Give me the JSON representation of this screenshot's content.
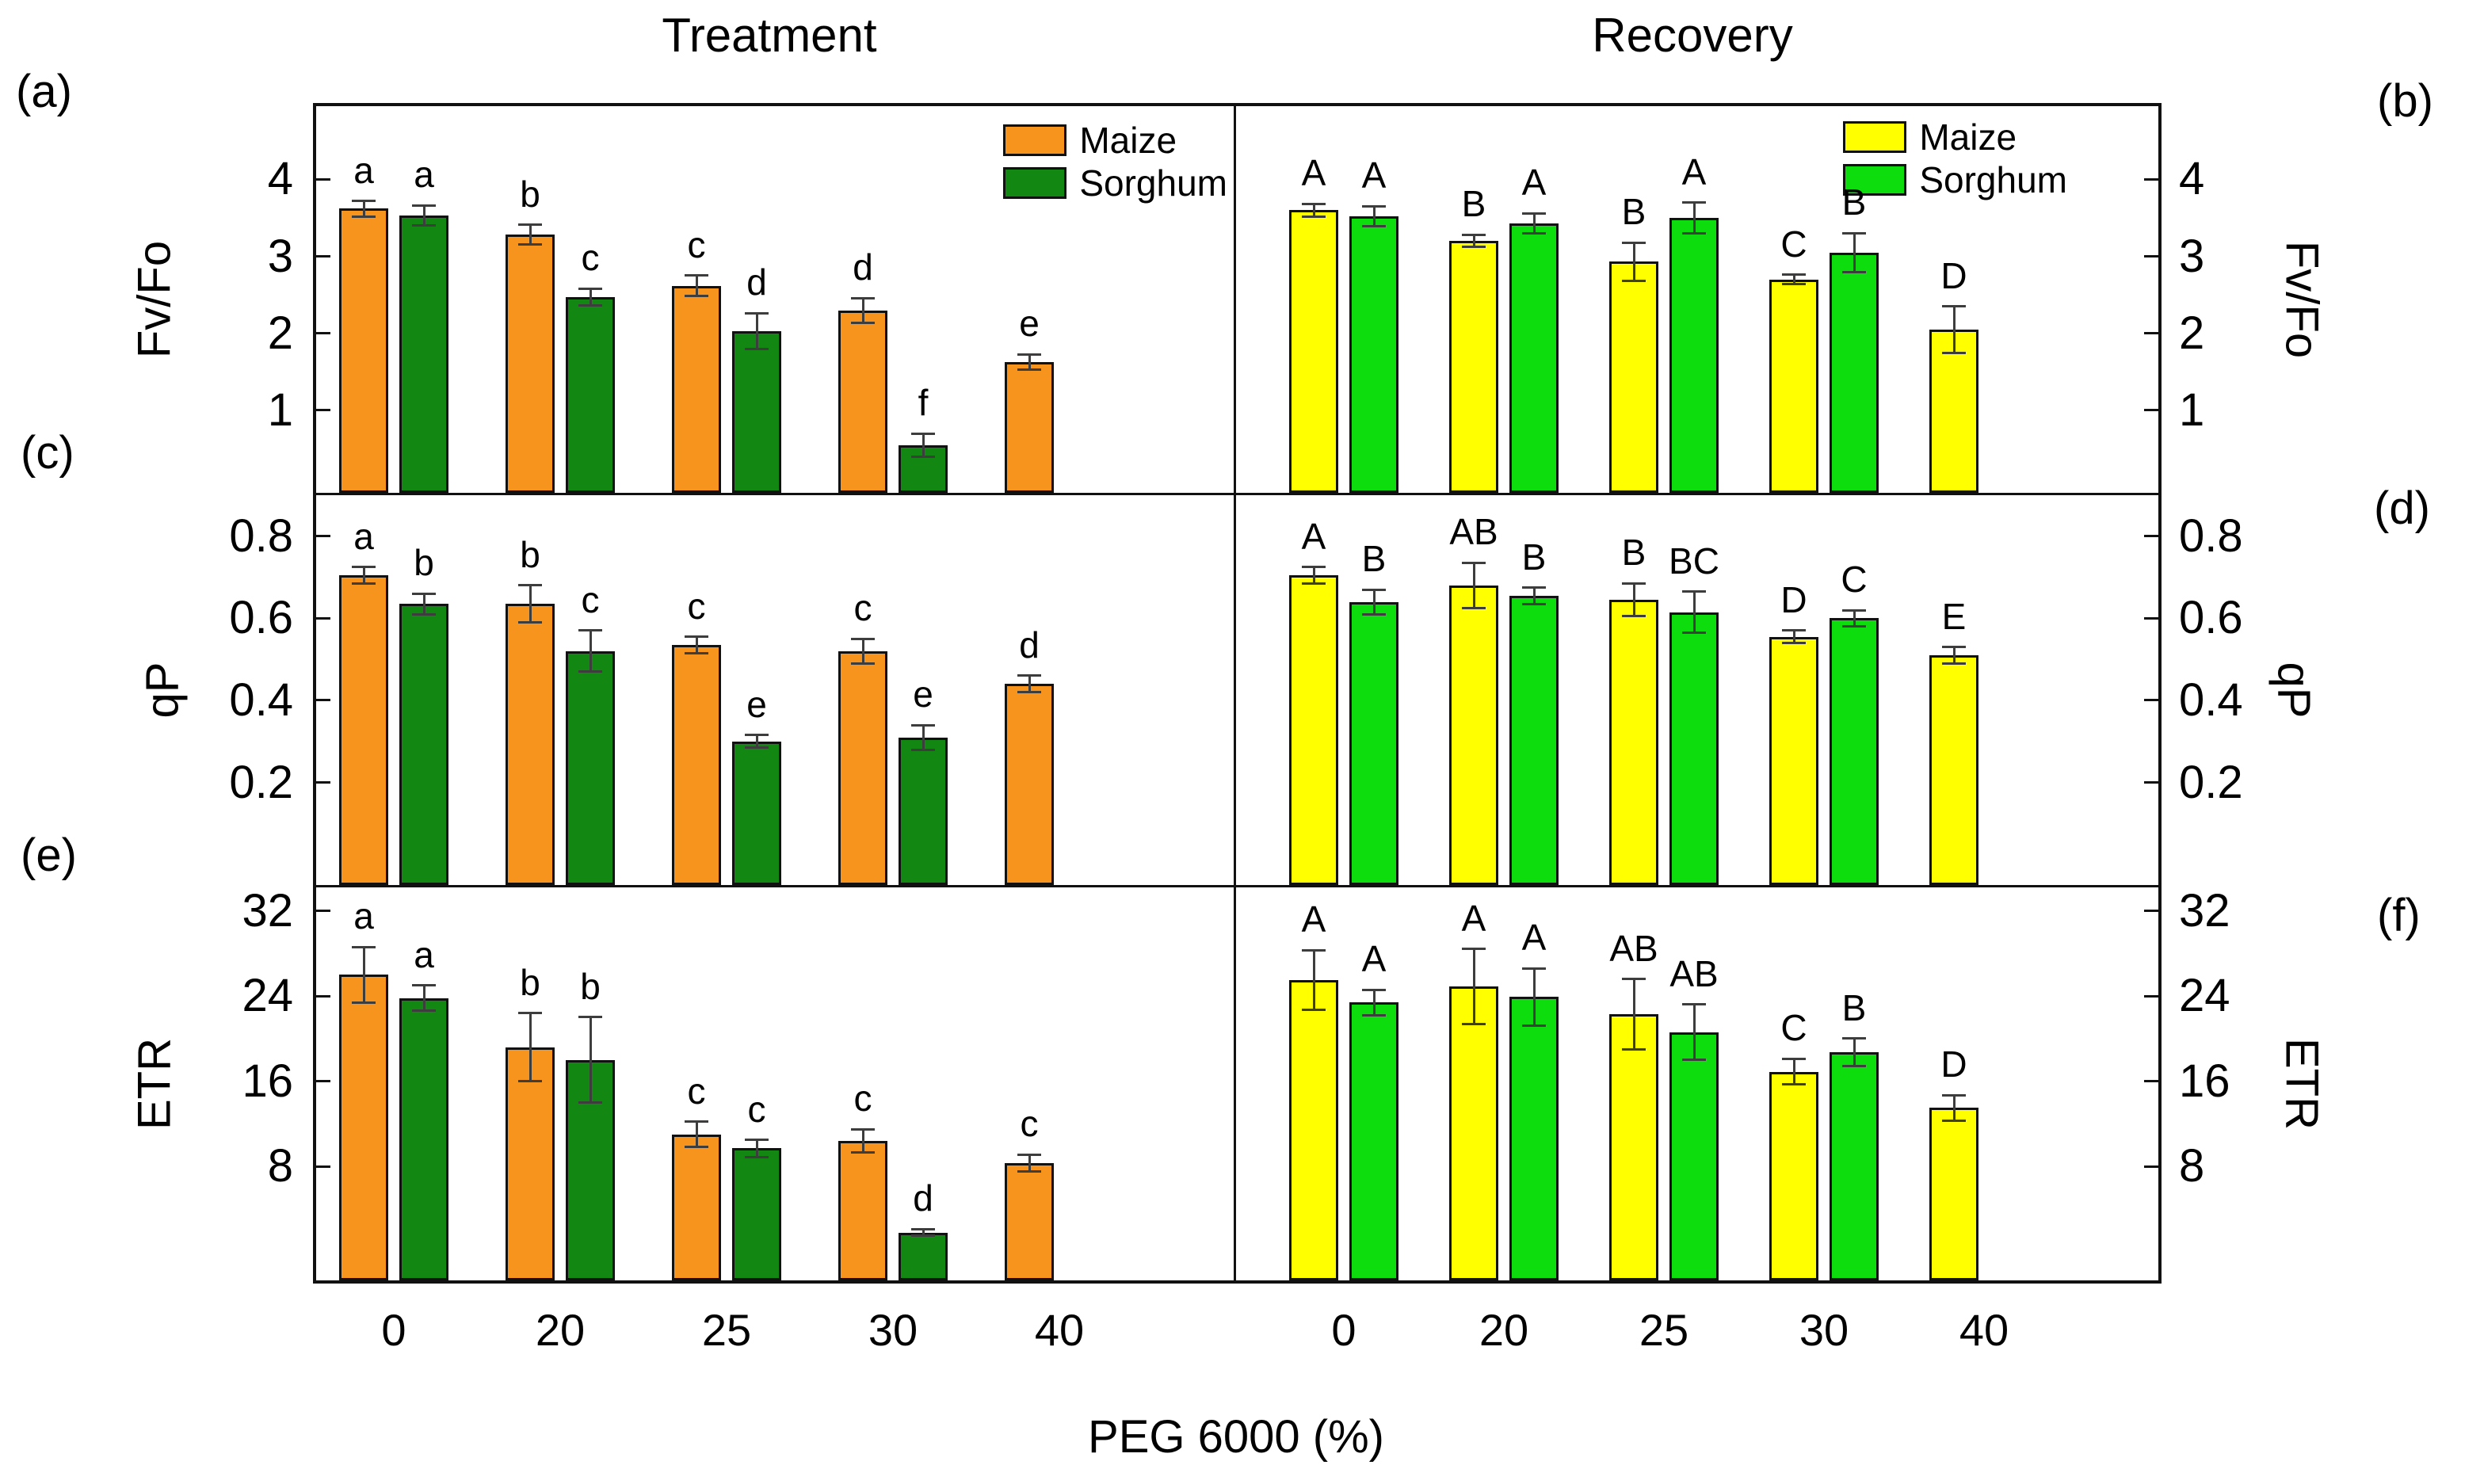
{
  "figure": {
    "title_left": "Treatment",
    "title_right": "Recovery",
    "x_axis_label": "PEG 6000 (%)",
    "x_categories": [
      "0",
      "20",
      "25",
      "30",
      "40"
    ]
  },
  "panel_letters": {
    "a": "(a)",
    "b": "(b)",
    "c": "(c)",
    "d": "(d)",
    "e": "(e)",
    "f": "(f)"
  },
  "legends": {
    "treatment": {
      "maize_label": "Maize",
      "sorghum_label": "Sorghum",
      "maize_color": "#F7941E",
      "sorghum_color": "#128712"
    },
    "recovery": {
      "maize_label": "Maize",
      "sorghum_label": "Sorghum",
      "maize_color": "#FFFF00",
      "sorghum_color": "#0DDD0D"
    }
  },
  "colors": {
    "axis": "#111111",
    "error_bar": "#3d3d3d",
    "background": "#ffffff"
  },
  "chart_data": [
    {
      "id": "a",
      "section": "Treatment",
      "type": "bar",
      "ylabel": "Fv/Fo",
      "yticks": [
        "1",
        "2",
        "3",
        "4"
      ],
      "ylim": [
        -0.07,
        4.95
      ],
      "grid": false,
      "categories": [
        "0",
        "20",
        "25",
        "30",
        "40"
      ],
      "series": [
        {
          "name": "Maize",
          "color": "#F7941E",
          "values": [
            3.62,
            3.28,
            2.62,
            2.3,
            1.63
          ],
          "errors": [
            0.1,
            0.13,
            0.13,
            0.16,
            0.1
          ],
          "sig_letters": [
            "a",
            "b",
            "c",
            "d",
            "e"
          ]
        },
        {
          "name": "Sorghum",
          "color": "#128712",
          "values": [
            3.53,
            2.47,
            2.03,
            0.55,
            null
          ],
          "errors": [
            0.13,
            0.11,
            0.23,
            0.15,
            null
          ],
          "sig_letters": [
            "a",
            "c",
            "d",
            "f",
            null
          ]
        }
      ]
    },
    {
      "id": "b",
      "section": "Recovery",
      "type": "bar",
      "ylabel": "Fv/Fo",
      "yticks": [
        "1",
        "2",
        "3",
        "4"
      ],
      "ylim": [
        -0.07,
        4.95
      ],
      "grid": false,
      "categories": [
        "0",
        "20",
        "25",
        "30",
        "40"
      ],
      "series": [
        {
          "name": "Maize",
          "color": "#FFFF00",
          "values": [
            3.6,
            3.2,
            2.93,
            2.7,
            2.05
          ],
          "errors": [
            0.08,
            0.08,
            0.25,
            0.06,
            0.3
          ],
          "sig_letters": [
            "A",
            "B",
            "B",
            "C",
            "D"
          ]
        },
        {
          "name": "Sorghum",
          "color": "#0DDD0D",
          "values": [
            3.52,
            3.43,
            3.5,
            3.05,
            null
          ],
          "errors": [
            0.13,
            0.13,
            0.2,
            0.25,
            null
          ],
          "sig_letters": [
            "A",
            "A",
            "A",
            "B",
            null
          ]
        }
      ]
    },
    {
      "id": "c",
      "section": "Treatment",
      "type": "bar",
      "ylabel": "qP",
      "yticks": [
        "0.2",
        "0.4",
        "0.6",
        "0.8"
      ],
      "ylim": [
        -0.05,
        0.9
      ],
      "grid": false,
      "categories": [
        "0",
        "20",
        "25",
        "30",
        "40"
      ],
      "series": [
        {
          "name": "Maize",
          "color": "#F7941E",
          "values": [
            0.705,
            0.635,
            0.535,
            0.52,
            0.44
          ],
          "errors": [
            0.02,
            0.045,
            0.02,
            0.03,
            0.02
          ],
          "sig_letters": [
            "a",
            "b",
            "c",
            "c",
            "d"
          ]
        },
        {
          "name": "Sorghum",
          "color": "#128712",
          "values": [
            0.635,
            0.52,
            0.3,
            0.31,
            null
          ],
          "errors": [
            0.025,
            0.05,
            0.015,
            0.03,
            null
          ],
          "sig_letters": [
            "b",
            "c",
            "e",
            "e",
            null
          ]
        }
      ]
    },
    {
      "id": "d",
      "section": "Recovery",
      "type": "bar",
      "ylabel": "qP",
      "yticks": [
        "0.2",
        "0.4",
        "0.6",
        "0.8"
      ],
      "ylim": [
        -0.05,
        0.9
      ],
      "grid": false,
      "categories": [
        "0",
        "20",
        "25",
        "30",
        "40"
      ],
      "series": [
        {
          "name": "Maize",
          "color": "#FFFF00",
          "values": [
            0.705,
            0.68,
            0.645,
            0.555,
            0.51
          ],
          "errors": [
            0.02,
            0.055,
            0.04,
            0.015,
            0.02
          ],
          "sig_letters": [
            "A",
            "AB",
            "B",
            "D",
            "E"
          ]
        },
        {
          "name": "Sorghum",
          "color": "#0DDD0D",
          "values": [
            0.64,
            0.655,
            0.615,
            0.6,
            null
          ],
          "errors": [
            0.03,
            0.02,
            0.05,
            0.02,
            null
          ],
          "sig_letters": [
            "B",
            "B",
            "BC",
            "C",
            null
          ]
        }
      ]
    },
    {
      "id": "e",
      "section": "Treatment",
      "type": "bar",
      "ylabel": "ETR",
      "yticks": [
        "8",
        "16",
        "24",
        "32"
      ],
      "ylim": [
        -2.7,
        34.2
      ],
      "grid": false,
      "categories": [
        "0",
        "20",
        "25",
        "30",
        "40"
      ],
      "series": [
        {
          "name": "Maize",
          "color": "#F7941E",
          "values": [
            26.0,
            19.2,
            11.0,
            10.4,
            8.3
          ],
          "errors": [
            2.6,
            3.2,
            1.2,
            1.1,
            0.8
          ],
          "sig_letters": [
            "a",
            "b",
            "c",
            "c",
            "c"
          ]
        },
        {
          "name": "Sorghum",
          "color": "#128712",
          "values": [
            23.8,
            18.0,
            9.7,
            1.8,
            null
          ],
          "errors": [
            1.2,
            4.0,
            0.8,
            0.3,
            null
          ],
          "sig_letters": [
            "a",
            "b",
            "c",
            "d",
            null
          ]
        }
      ]
    },
    {
      "id": "f",
      "section": "Recovery",
      "type": "bar",
      "ylabel": "ETR",
      "yticks": [
        "8",
        "16",
        "24",
        "32"
      ],
      "ylim": [
        -2.7,
        34.2
      ],
      "grid": false,
      "categories": [
        "0",
        "20",
        "25",
        "30",
        "40"
      ],
      "series": [
        {
          "name": "Maize",
          "color": "#FFFF00",
          "values": [
            25.5,
            24.9,
            22.3,
            16.9,
            13.5
          ],
          "errors": [
            2.8,
            3.5,
            3.3,
            1.2,
            1.2
          ],
          "sig_letters": [
            "A",
            "A",
            "AB",
            "C",
            "D"
          ]
        },
        {
          "name": "Sorghum",
          "color": "#0DDD0D",
          "values": [
            23.4,
            23.9,
            20.6,
            18.7,
            null
          ],
          "errors": [
            1.2,
            2.7,
            2.6,
            1.3,
            null
          ],
          "sig_letters": [
            "A",
            "A",
            "AB",
            "B",
            null
          ]
        }
      ]
    }
  ]
}
